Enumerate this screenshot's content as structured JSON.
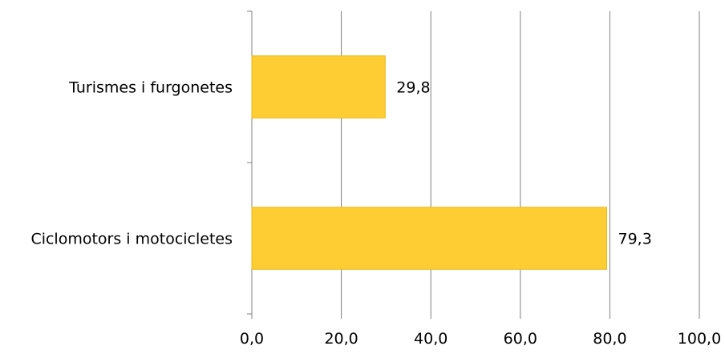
{
  "chart_data": {
    "type": "bar",
    "orientation": "horizontal",
    "categories": [
      "Turismes i furgonetes",
      "Ciclomotors i motocicletes"
    ],
    "values": [
      29.8,
      79.3
    ],
    "value_labels": [
      "29,8",
      "79,3"
    ],
    "xlim": [
      0,
      100
    ],
    "x_ticks": [
      0,
      20,
      40,
      60,
      80,
      100
    ],
    "x_tick_labels": [
      "0,0",
      "20,0",
      "40,0",
      "60,0",
      "80,0",
      "100,0"
    ],
    "grid": "vertical",
    "legend": "none",
    "colors": {
      "bar": "#FDCD33",
      "bar_edge": "#EAB814",
      "grid": "#808080"
    }
  }
}
